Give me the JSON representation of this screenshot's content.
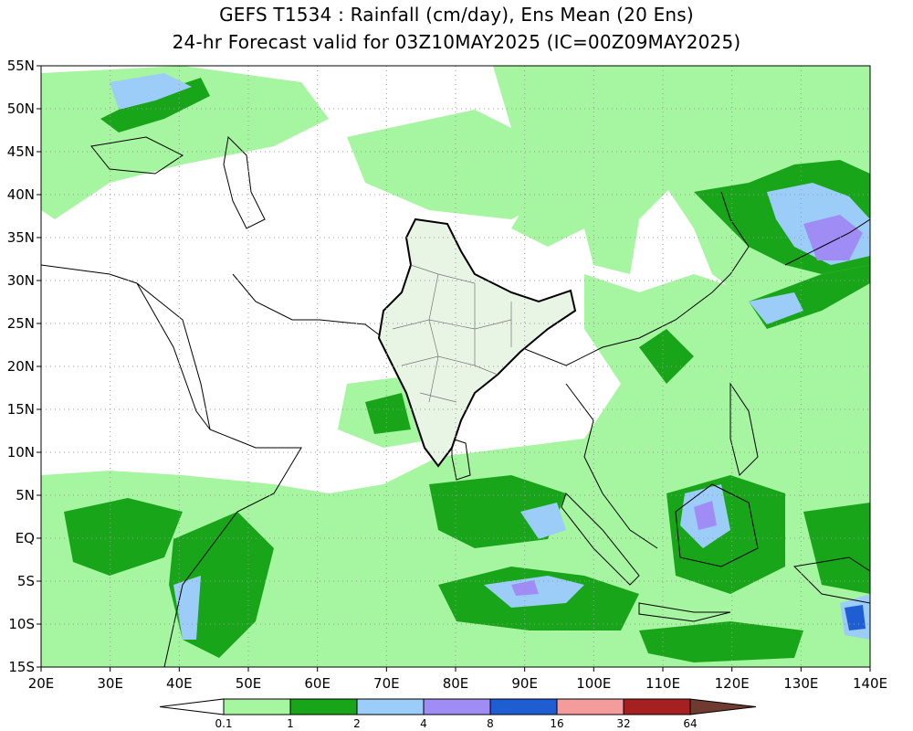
{
  "title_line1": "GEFS T1534 : Rainfall (cm/day), Ens Mean (20 Ens)",
  "title_line2": "24-hr Forecast valid for 03Z10MAY2025 (IC=00Z09MAY2025)",
  "lon_labels": [
    "20E",
    "30E",
    "40E",
    "50E",
    "60E",
    "70E",
    "80E",
    "90E",
    "100E",
    "110E",
    "120E",
    "130E",
    "140E"
  ],
  "lat_labels": [
    "55N",
    "50N",
    "45N",
    "40N",
    "35N",
    "30N",
    "25N",
    "20N",
    "15N",
    "10N",
    "5N",
    "EQ",
    "5S",
    "10S",
    "15S"
  ],
  "legend": {
    "levels": [
      "0.1",
      "1",
      "2",
      "4",
      "8",
      "16",
      "32",
      "64"
    ],
    "colors": [
      "#ffffff",
      "#a6f5a0",
      "#19a519",
      "#9ccdf8",
      "#a08cf5",
      "#1e5ed2",
      "#f49c9c",
      "#a62021",
      "#6f3a2f"
    ]
  },
  "rain_colors": {
    "light": "#a6f5a0",
    "moderate": "#19a519",
    "heavy": "#9ccdf8",
    "very_heavy": "#a08cf5",
    "extreme": "#1e5ed2"
  },
  "grid": true
}
